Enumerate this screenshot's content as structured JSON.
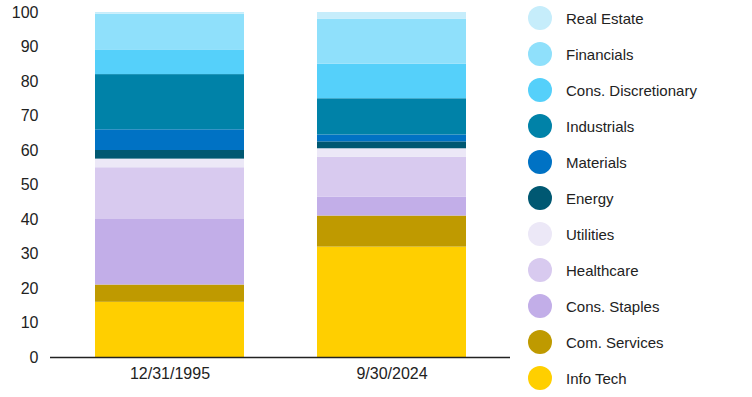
{
  "chart_data": {
    "type": "bar",
    "stacked": true,
    "categories": [
      "12/31/1995",
      "9/30/2024"
    ],
    "series": [
      {
        "name": "Real Estate",
        "color": "#c6edfb",
        "values": [
          0.5,
          2
        ]
      },
      {
        "name": "Financials",
        "color": "#8fe0fb",
        "values": [
          10.5,
          13
        ]
      },
      {
        "name": "Cons. Discretionary",
        "color": "#55d0fa",
        "values": [
          7,
          10
        ]
      },
      {
        "name": "Industrials",
        "color": "#0082a8",
        "values": [
          16,
          10.5
        ]
      },
      {
        "name": "Materials",
        "color": "#0072c4",
        "values": [
          6,
          2
        ]
      },
      {
        "name": "Energy",
        "color": "#005872",
        "values": [
          2.5,
          2
        ]
      },
      {
        "name": "Utilities",
        "color": "#ece8f7",
        "values": [
          2.5,
          2.5
        ]
      },
      {
        "name": "Healthcare",
        "color": "#d8caef",
        "values": [
          15,
          11.5
        ]
      },
      {
        "name": "Cons. Staples",
        "color": "#c2aee8",
        "values": [
          19,
          5.5
        ]
      },
      {
        "name": "Com. Services",
        "color": "#bf9a00",
        "values": [
          5,
          9
        ]
      },
      {
        "name": "Info Tech",
        "color": "#ffcf00",
        "values": [
          16,
          32
        ]
      }
    ],
    "ylim": [
      0,
      100
    ],
    "yticks": [
      0,
      10,
      20,
      30,
      40,
      50,
      60,
      70,
      80,
      90,
      100
    ],
    "grid": false,
    "legend": "right"
  }
}
